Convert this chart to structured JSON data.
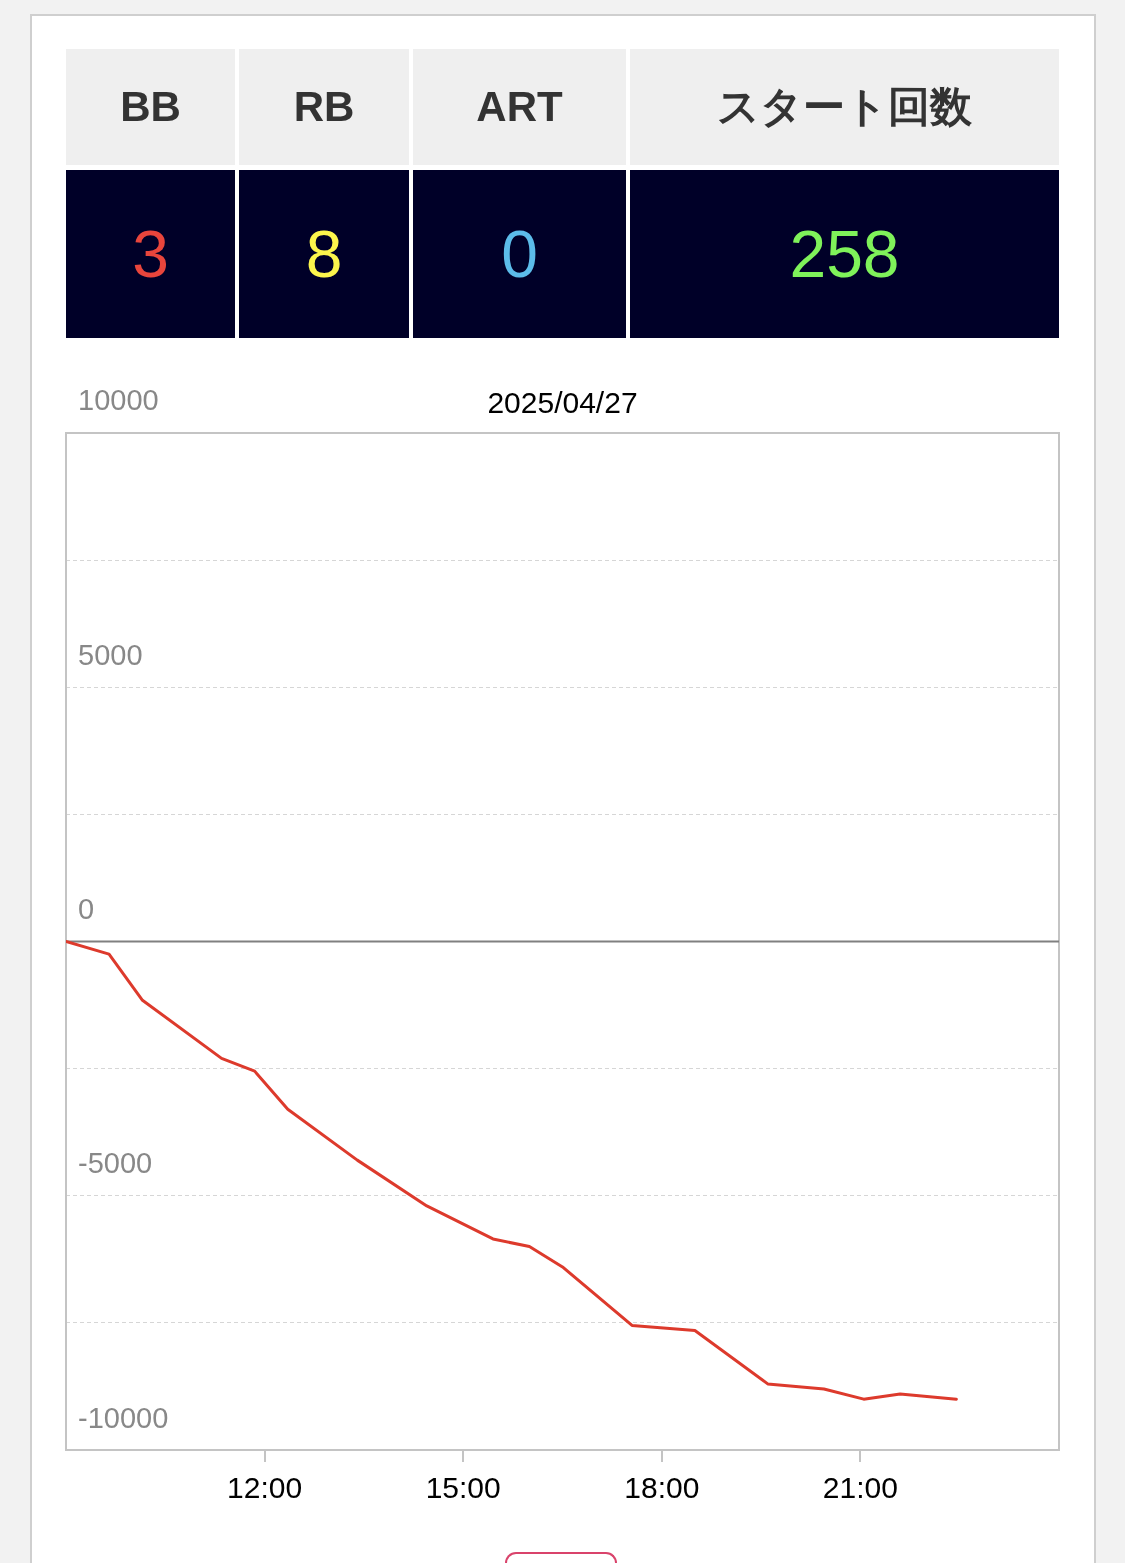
{
  "chart_data": [
    {
      "type": "other",
      "categories": [
        "BB",
        "RB",
        "ART",
        "スタート回数"
      ],
      "values": [
        3,
        8,
        0,
        258
      ],
      "data_labels": true
    },
    {
      "type": "line",
      "title": "2025/04/27",
      "x": [
        9,
        9.65,
        10.15,
        11.35,
        11.85,
        12.35,
        13.4,
        14.45,
        15.45,
        16.0,
        16.5,
        17.55,
        18.5,
        19.6,
        20.45,
        21.05,
        21.6,
        22.45
      ],
      "series": [
        {
          "color": "#dd3a2c",
          "values": [
            0,
            -250,
            -1150,
            -2300,
            -2550,
            -3300,
            -4300,
            -5200,
            -5850,
            -6000,
            -6400,
            -7550,
            -7650,
            -8700,
            -8800,
            -9000,
            -8900,
            -9000
          ]
        }
      ],
      "xlim": [
        9,
        24
      ],
      "xticks": [
        {
          "value": 12,
          "label": "12:00"
        },
        {
          "value": 15,
          "label": "15:00"
        },
        {
          "value": 18,
          "label": "18:00"
        },
        {
          "value": 21,
          "label": "21:00"
        }
      ],
      "ylim": [
        -10000,
        10000
      ],
      "yticks": [
        10000,
        {
          "value": 7500,
          "label": null
        },
        5000,
        {
          "value": 2500,
          "label": null
        },
        0,
        {
          "value": -2500,
          "label": null
        },
        -5000,
        {
          "value": -7500,
          "label": null
        },
        -10000
      ],
      "grid": "y",
      "marker": "none",
      "ref_lines": [
        {
          "axis": "y",
          "value": 0,
          "color": "#808080"
        }
      ]
    }
  ]
}
